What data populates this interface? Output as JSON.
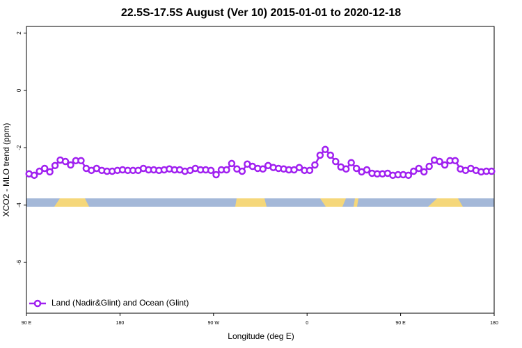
{
  "chart_data": {
    "type": "line",
    "title": "22.5S-17.5S August (Ver 10)   2015-01-01 to 2020-12-18",
    "xlabel": "Longitude (deg E)",
    "ylabel": "XCO2 - MLO trend (ppm)",
    "x": [
      92.5,
      97.5,
      102.5,
      107.5,
      112.5,
      117.5,
      122.5,
      127.5,
      132.5,
      137.5,
      142.5,
      147.5,
      152.5,
      157.5,
      162.5,
      167.5,
      172.5,
      177.5,
      182.5,
      187.5,
      192.5,
      197.5,
      202.5,
      207.5,
      212.5,
      217.5,
      222.5,
      227.5,
      232.5,
      237.5,
      242.5,
      247.5,
      252.5,
      257.5,
      262.5,
      267.5,
      272.5,
      277.5,
      282.5,
      287.5,
      292.5,
      297.5,
      302.5,
      307.5,
      312.5,
      317.5,
      322.5,
      327.5,
      332.5,
      337.5,
      342.5,
      347.5,
      352.5,
      357.5,
      362.5,
      367.5,
      372.5,
      377.5,
      382.5,
      387.5,
      392.5,
      397.5,
      402.5,
      407.5,
      412.5,
      417.5,
      422.5,
      427.5,
      432.5,
      437.5,
      442.5,
      447.5,
      452.5,
      457.5,
      462.5,
      467.5,
      472.5,
      477.5,
      482.5,
      487.5,
      492.5,
      497.5,
      502.5,
      507.5,
      512.5,
      517.5,
      522.5,
      527.5,
      532.5,
      537.5
    ],
    "series": [
      {
        "name": "Land (Nadir&Glint) and Ocean (Glint)",
        "color": "#a020f0",
        "values": [
          -2.91,
          -2.96,
          -2.82,
          -2.72,
          -2.84,
          -2.62,
          -2.43,
          -2.48,
          -2.6,
          -2.45,
          -2.45,
          -2.72,
          -2.79,
          -2.72,
          -2.79,
          -2.82,
          -2.82,
          -2.79,
          -2.77,
          -2.79,
          -2.79,
          -2.79,
          -2.72,
          -2.77,
          -2.77,
          -2.79,
          -2.77,
          -2.74,
          -2.77,
          -2.77,
          -2.82,
          -2.79,
          -2.72,
          -2.77,
          -2.77,
          -2.79,
          -2.94,
          -2.77,
          -2.77,
          -2.55,
          -2.74,
          -2.82,
          -2.57,
          -2.65,
          -2.72,
          -2.74,
          -2.62,
          -2.69,
          -2.72,
          -2.74,
          -2.77,
          -2.77,
          -2.69,
          -2.79,
          -2.79,
          -2.6,
          -2.26,
          -2.06,
          -2.26,
          -2.48,
          -2.67,
          -2.74,
          -2.52,
          -2.72,
          -2.84,
          -2.77,
          -2.89,
          -2.91,
          -2.91,
          -2.89,
          -2.96,
          -2.94,
          -2.94,
          -2.96,
          -2.82,
          -2.72,
          -2.84,
          -2.65,
          -2.43,
          -2.48,
          -2.6,
          -2.45,
          -2.45,
          -2.74,
          -2.79,
          -2.72,
          -2.79,
          -2.84,
          -2.82,
          -2.82
        ]
      }
    ],
    "xlim": [
      90,
      540
    ],
    "xticks": [
      {
        "value": 90,
        "label": "90 E"
      },
      {
        "value": 180,
        "label": "180"
      },
      {
        "value": 270,
        "label": "90 W"
      },
      {
        "value": 360,
        "label": "0"
      },
      {
        "value": 450,
        "label": "90 E"
      },
      {
        "value": 540,
        "label": "180"
      }
    ],
    "ylim": [
      -7.77,
      2.23
    ],
    "yticks": [
      2,
      0,
      -2,
      -4,
      -6
    ],
    "legend": "bottom-left"
  }
}
